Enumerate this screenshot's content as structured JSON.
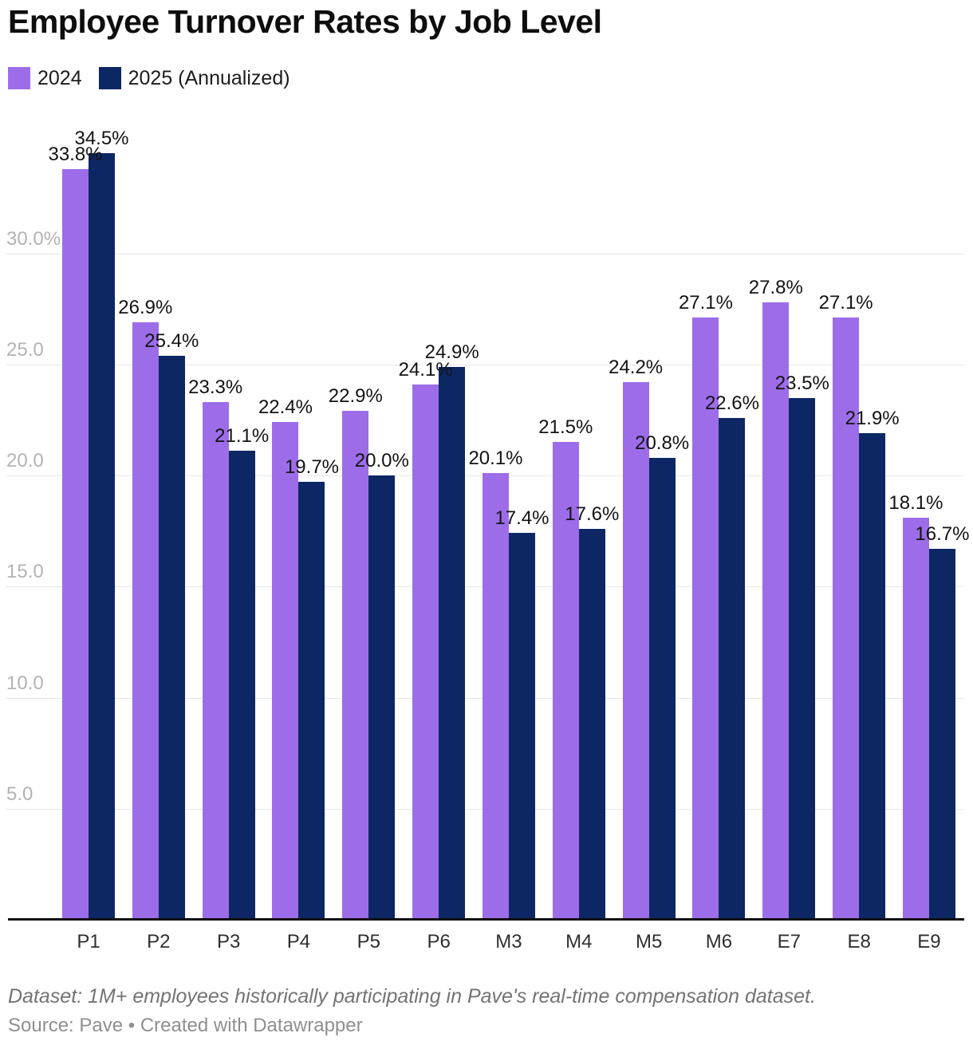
{
  "title": "Employee Turnover Rates by Job Level",
  "footer": {
    "dataset_note": "Dataset: 1M+ employees historically participating in Pave's real-time compensation dataset.",
    "source": "Source: Pave • Created with Datawrapper"
  },
  "colors": {
    "series_2024": "#9d6de9",
    "series_2025": "#0d2765",
    "gridline": "#e7e7e7",
    "axis_line": "#101010",
    "ytick_text": "#b3b3b3",
    "value_label_text": "#131313"
  },
  "chart_data": {
    "type": "bar",
    "title": "Employee Turnover Rates by Job Level",
    "categories": [
      "P1",
      "P2",
      "P3",
      "P4",
      "P5",
      "P6",
      "M3",
      "M4",
      "M5",
      "M6",
      "E7",
      "E8",
      "E9"
    ],
    "series": [
      {
        "name": "2024",
        "color": "#9d6de9",
        "values": [
          33.8,
          26.9,
          23.3,
          22.4,
          22.9,
          24.1,
          20.1,
          21.5,
          24.2,
          27.1,
          27.8,
          27.1,
          18.1
        ]
      },
      {
        "name": "2025 (Annualized)",
        "color": "#0d2765",
        "values": [
          34.5,
          25.4,
          21.1,
          19.7,
          20.0,
          24.9,
          17.4,
          17.6,
          20.8,
          22.6,
          23.5,
          21.9,
          16.7
        ]
      }
    ],
    "value_label_suffix": "%",
    "yticks": [
      5,
      10,
      15,
      20,
      25,
      30
    ],
    "ytick_labels": [
      "5.0",
      "10.0",
      "15.0",
      "20.0",
      "25.0",
      "30.0%"
    ],
    "ylim": [
      0,
      34.5
    ],
    "xlabel": "",
    "ylabel": "",
    "grid": true,
    "legend_position": "top-left",
    "value_labels": true
  }
}
